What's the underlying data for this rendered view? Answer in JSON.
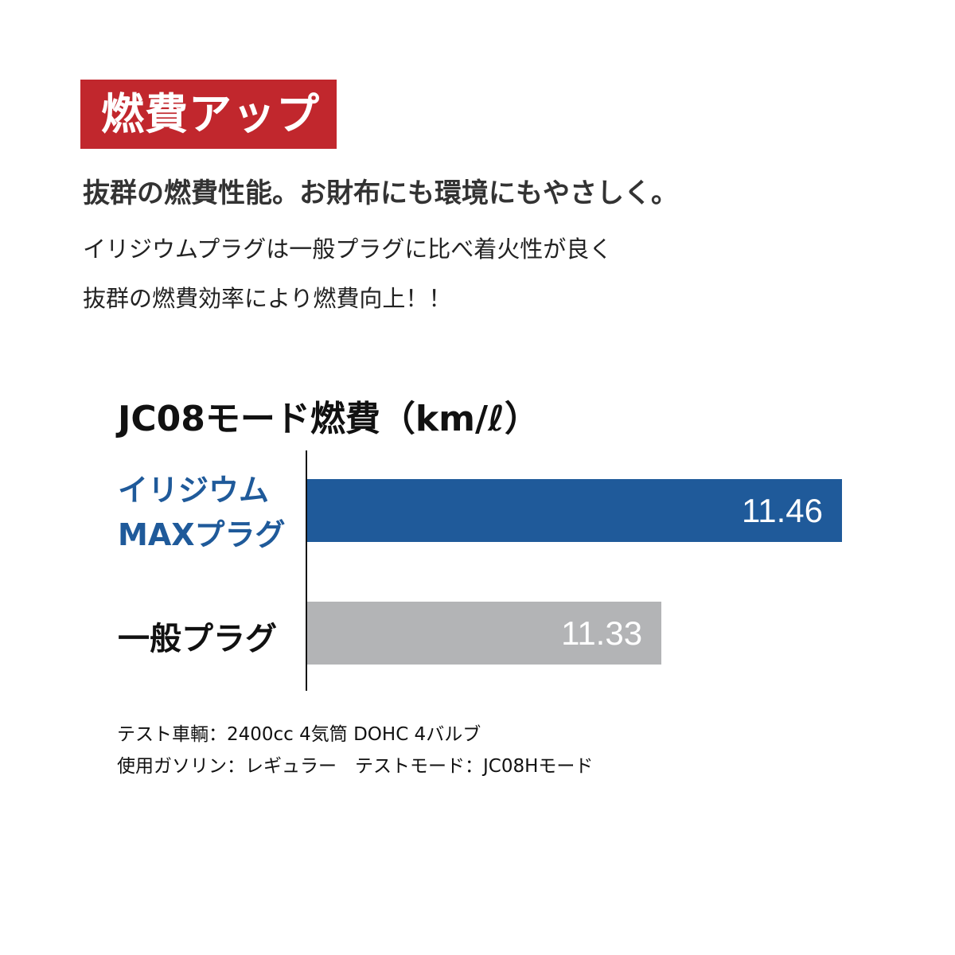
{
  "badge": {
    "text": "燃費アップ",
    "color": "#c1272d"
  },
  "headline": "抜群の燃費性能。お財布にも環境にもやさしく。",
  "body": [
    "イリジウムプラグは一般プラグに比べ着火性が良く",
    "抜群の燃費効率により燃費向上！！"
  ],
  "chart_data": {
    "type": "bar",
    "orientation": "horizontal",
    "title": "JC08モード燃費（km/ℓ）",
    "categories": [
      "イリジウム\nMAXプラグ",
      "一般プラグ"
    ],
    "values": [
      11.46,
      11.33
    ],
    "value_labels": [
      "11.46",
      "11.33"
    ],
    "colors": [
      "#1f5a9a",
      "#b3b4b6"
    ],
    "category_colors": [
      "#1f5a9a",
      "#111111"
    ],
    "grid": false
  },
  "notes": [
    "テスト車輌：2400cc 4気筒 DOHC 4バルブ",
    "使用ガソリン：レギュラー　テストモード：JC08Hモード"
  ]
}
